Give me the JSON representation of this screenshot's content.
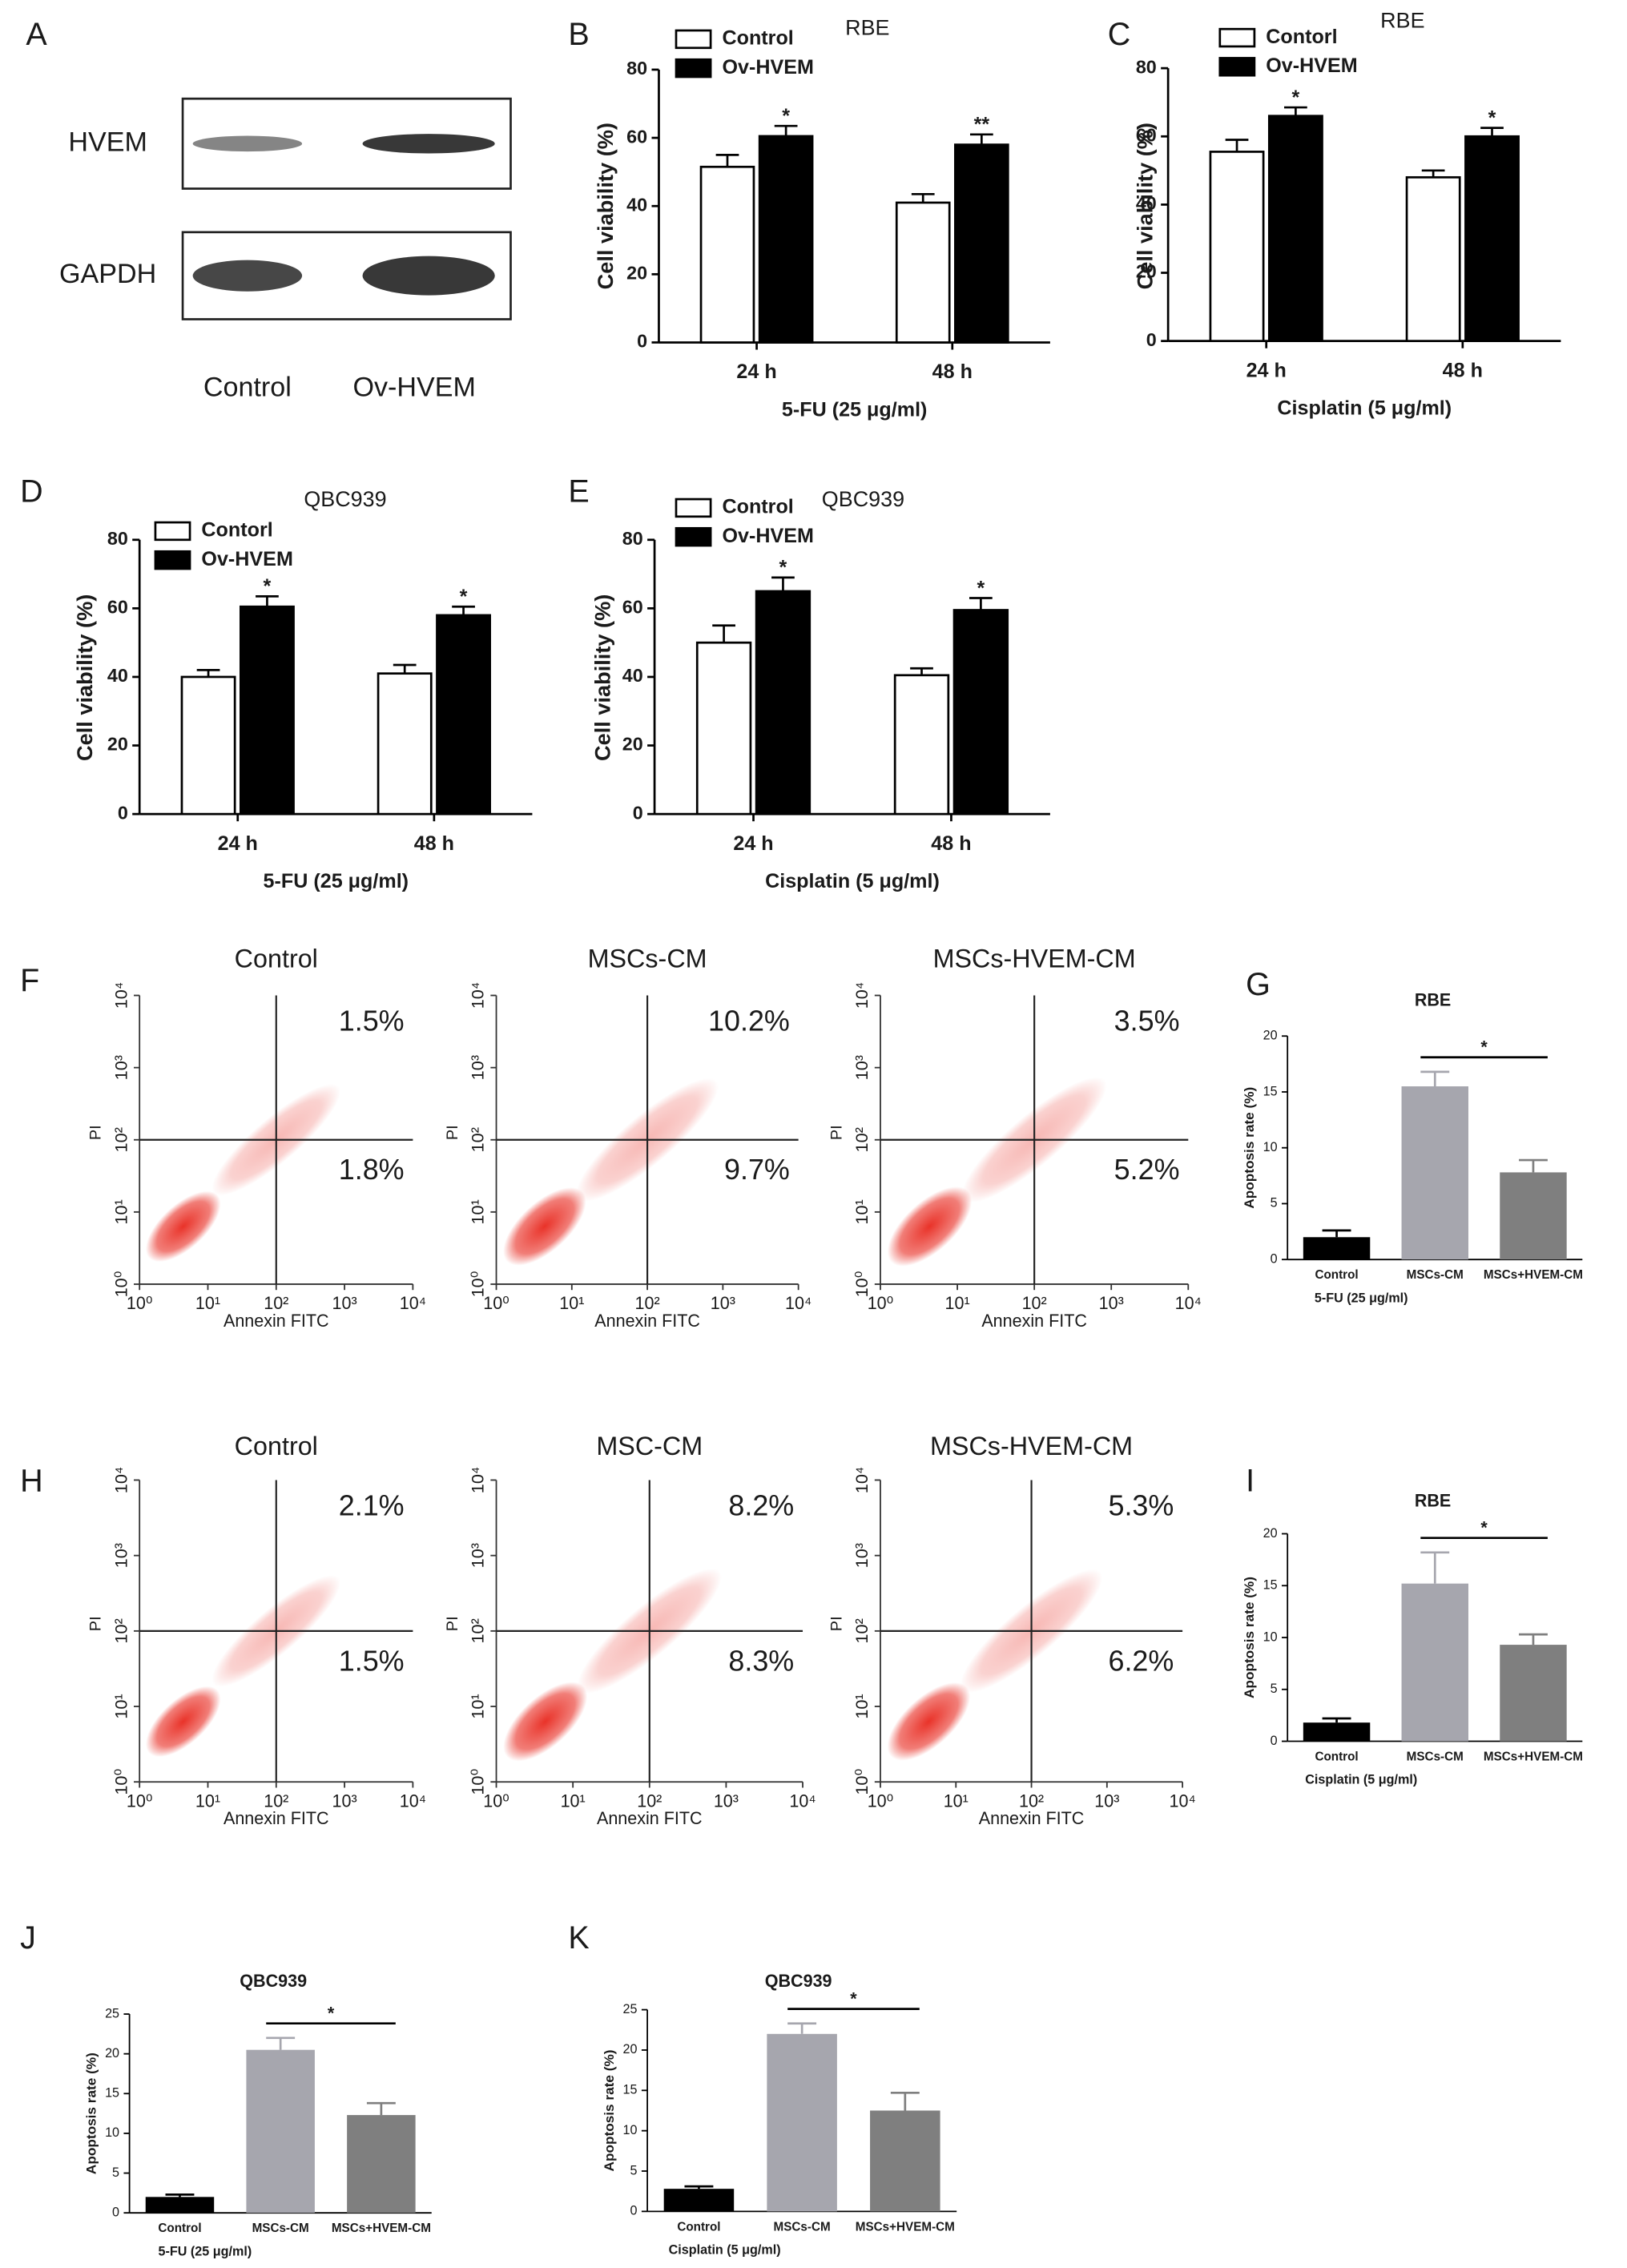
{
  "chart_data": [
    {
      "type": "blot",
      "label": "A",
      "rows": [
        "HVEM",
        "GAPDH"
      ],
      "categories": [
        "Control",
        "Ov-HVEM"
      ]
    },
    {
      "type": "grouped_bar",
      "label": "B",
      "title": "RBE",
      "ylabel": "Cell viability (%)",
      "xlabel": "5-FU (25 μg/ml)",
      "categories": [
        "24 h",
        "48 h"
      ],
      "ylim": [
        0,
        80
      ],
      "yticks": [
        0,
        20,
        40,
        60,
        80
      ],
      "series": [
        {
          "name": "Control",
          "color": "#ffffff",
          "values": [
            51.5,
            41
          ],
          "errors": [
            3.5,
            2.5
          ]
        },
        {
          "name": "Ov-HVEM",
          "color": "#000000",
          "values": [
            60.5,
            58
          ],
          "errors": [
            3,
            3
          ]
        }
      ],
      "significance": [
        "*",
        "**"
      ]
    },
    {
      "type": "grouped_bar",
      "label": "C",
      "title": "RBE",
      "ylabel": "Cell viability (%)",
      "xlabel": "Cisplatin (5 μg/ml)",
      "categories": [
        "24 h",
        "48 h"
      ],
      "ylim": [
        0,
        80
      ],
      "yticks": [
        0,
        20,
        40,
        60,
        80
      ],
      "series": [
        {
          "name": "Contorl",
          "color": "#ffffff",
          "values": [
            55.5,
            48
          ],
          "errors": [
            3.5,
            2
          ]
        },
        {
          "name": "Ov-HVEM",
          "color": "#000000",
          "values": [
            66,
            60
          ],
          "errors": [
            2.5,
            2.5
          ]
        }
      ],
      "significance": [
        "*",
        "*"
      ]
    },
    {
      "type": "grouped_bar",
      "label": "D",
      "title": "QBC939",
      "ylabel": "Cell viability (%)",
      "xlabel": "5-FU (25 μg/ml)",
      "categories": [
        "24 h",
        "48 h"
      ],
      "ylim": [
        0,
        80
      ],
      "yticks": [
        0,
        20,
        40,
        60,
        80
      ],
      "series": [
        {
          "name": "Contorl",
          "color": "#ffffff",
          "values": [
            40,
            41
          ],
          "errors": [
            2,
            2.5
          ]
        },
        {
          "name": "Ov-HVEM",
          "color": "#000000",
          "values": [
            60.5,
            58
          ],
          "errors": [
            3,
            2.5
          ]
        }
      ],
      "significance": [
        "*",
        "*"
      ]
    },
    {
      "type": "grouped_bar",
      "label": "E",
      "title": "QBC939",
      "ylabel": "Cell viability (%)",
      "xlabel": "Cisplatin (5 μg/ml)",
      "categories": [
        "24 h",
        "48 h"
      ],
      "ylim": [
        0,
        80
      ],
      "yticks": [
        0,
        20,
        40,
        60,
        80
      ],
      "series": [
        {
          "name": "Control",
          "color": "#ffffff",
          "values": [
            50,
            40.5
          ],
          "errors": [
            5,
            2
          ]
        },
        {
          "name": "Ov-HVEM",
          "color": "#000000",
          "values": [
            65,
            59.5
          ],
          "errors": [
            4,
            3.5
          ]
        }
      ],
      "significance": [
        "*",
        "*"
      ]
    },
    {
      "type": "flow",
      "label": "F",
      "xlabel": "Annexin FITC",
      "ylabel": "PI",
      "log_scale": true,
      "color": "#e8281e",
      "xlim": [
        1,
        10000
      ],
      "ylim": [
        1,
        10000
      ],
      "gate": [
        100,
        100
      ],
      "xticks": [
        {
          "value": 1,
          "label": "10⁰"
        },
        {
          "value": 10,
          "label": "10¹"
        },
        {
          "value": 100,
          "label": "10²"
        },
        {
          "value": 1000,
          "label": "10³"
        },
        {
          "value": 10000,
          "label": "10⁴"
        }
      ],
      "yticks": [
        {
          "value": 1,
          "label": "10⁰"
        },
        {
          "value": 10,
          "label": "10¹"
        },
        {
          "value": 100,
          "label": "10²"
        },
        {
          "value": 1000,
          "label": "10³"
        },
        {
          "value": 10000,
          "label": "10⁴"
        }
      ],
      "plots": [
        {
          "title": "Control",
          "values": [
            1.5,
            1.8
          ],
          "value_labels": [
            "1.5%",
            "1.8%"
          ]
        },
        {
          "title": "MSCs-CM",
          "values": [
            10.2,
            9.7
          ],
          "value_labels": [
            "10.2%",
            "9.7%"
          ]
        },
        {
          "title": "MSCs-HVEM-CM",
          "values": [
            3.5,
            5.2
          ],
          "value_labels": [
            "3.5%",
            "5.2%"
          ]
        }
      ]
    },
    {
      "type": "bar",
      "label": "G",
      "title": "RBE",
      "ylabel": "Apoptosis rate (%)",
      "xlabel": "5-FU (25 μg/ml)",
      "categories": [
        "Control",
        "MSCs-CM",
        "MSCs+HVEM-CM"
      ],
      "values": [
        2,
        15.5,
        7.8
      ],
      "errors": [
        0.6,
        1.3,
        1.1
      ],
      "colors": [
        "#000000",
        "#a6a6ae",
        "#7f7f7f"
      ],
      "ylim": [
        0,
        20
      ],
      "yticks": [
        0,
        5,
        10,
        15,
        20
      ],
      "significance": "*"
    },
    {
      "type": "flow",
      "label": "H",
      "xlabel": "Annexin FITC",
      "ylabel": "PI",
      "log_scale": true,
      "color": "#e8281e",
      "xlim": [
        1,
        10000
      ],
      "ylim": [
        1,
        10000
      ],
      "gate": [
        100,
        100
      ],
      "xticks": [
        {
          "value": 1,
          "label": "10⁰"
        },
        {
          "value": 10,
          "label": "10¹"
        },
        {
          "value": 100,
          "label": "10²"
        },
        {
          "value": 1000,
          "label": "10³"
        },
        {
          "value": 10000,
          "label": "10⁴"
        }
      ],
      "yticks": [
        {
          "value": 1,
          "label": "10⁰"
        },
        {
          "value": 10,
          "label": "10¹"
        },
        {
          "value": 100,
          "label": "10²"
        },
        {
          "value": 1000,
          "label": "10³"
        },
        {
          "value": 10000,
          "label": "10⁴"
        }
      ],
      "plots": [
        {
          "title": "Control",
          "values": [
            2.1,
            1.5
          ],
          "value_labels": [
            "2.1%",
            "1.5%"
          ]
        },
        {
          "title": "MSC-CM",
          "values": [
            8.2,
            8.3
          ],
          "value_labels": [
            "8.2%",
            "8.3%"
          ]
        },
        {
          "title": "MSCs-HVEM-CM",
          "values": [
            5.3,
            6.2
          ],
          "value_labels": [
            "5.3%",
            "6.2%"
          ]
        }
      ]
    },
    {
      "type": "bar",
      "label": "I",
      "title": "RBE",
      "ylabel": "Apoptosis rate (%)",
      "xlabel": "Cisplatin (5 μg/ml)",
      "categories": [
        "Control",
        "MSCs-CM",
        "MSCs+HVEM-CM"
      ],
      "values": [
        1.8,
        15.2,
        9.3
      ],
      "errors": [
        0.4,
        3,
        1
      ],
      "colors": [
        "#000000",
        "#a6a6ae",
        "#7f7f7f"
      ],
      "ylim": [
        0,
        20
      ],
      "yticks": [
        0,
        5,
        10,
        15,
        20
      ],
      "significance": "*"
    },
    {
      "type": "bar",
      "label": "J",
      "title": "QBC939",
      "ylabel": "Apoptosis rate (%)",
      "xlabel": "5-FU (25 μg/ml)",
      "categories": [
        "Control",
        "MSCs-CM",
        "MSCs+HVEM-CM"
      ],
      "values": [
        2,
        20.5,
        12.3
      ],
      "errors": [
        0.3,
        1.5,
        1.5
      ],
      "colors": [
        "#000000",
        "#a6a6ae",
        "#7f7f7f"
      ],
      "ylim": [
        0,
        25
      ],
      "yticks": [
        0,
        5,
        10,
        15,
        20,
        25
      ],
      "significance": "*"
    },
    {
      "type": "bar",
      "label": "K",
      "title": "QBC939",
      "ylabel": "Apoptosis rate (%)",
      "xlabel": "Cisplatin (5 μg/ml)",
      "categories": [
        "Control",
        "MSCs-CM",
        "MSCs+HVEM-CM"
      ],
      "values": [
        2.8,
        22,
        12.5
      ],
      "errors": [
        0.3,
        1.3,
        2.2
      ],
      "colors": [
        "#000000",
        "#a6a6ae",
        "#7f7f7f"
      ],
      "ylim": [
        0,
        25
      ],
      "yticks": [
        0,
        5,
        10,
        15,
        20,
        25
      ],
      "significance": "*"
    }
  ]
}
